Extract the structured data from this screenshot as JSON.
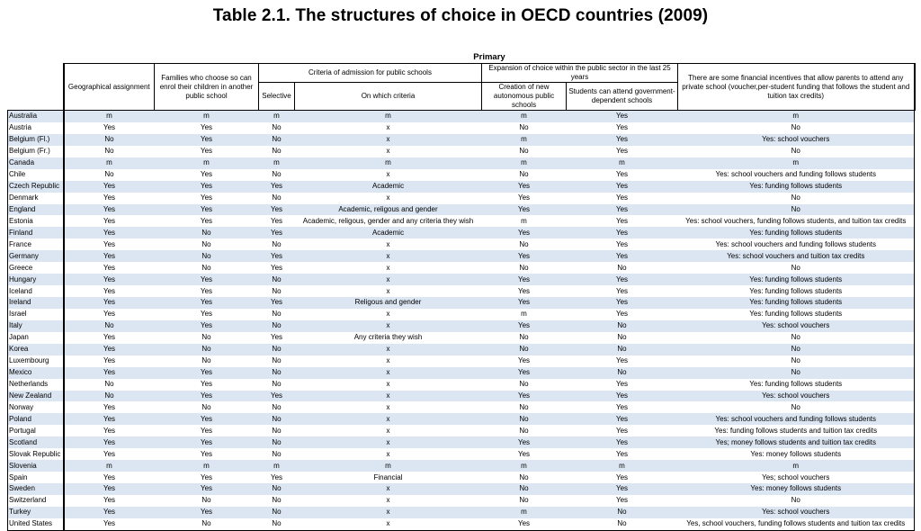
{
  "title": "Table 2.1. The structures of choice in OECD countries (2009)",
  "group_header": "Primary",
  "headers": {
    "geo": "Geographical assignment",
    "families": "Families who choose so can enrol their children in another public school",
    "criteria_group": "Criteria of admission for public schools",
    "selective": "Selective",
    "which_criteria": "On which criteria",
    "expansion_group": "Expansion of choice within the public sector in the last 25 years",
    "new_autonomous": "Creation of new autonomous public schools",
    "gov_dependent": "Students can attend government-dependent schools",
    "financial": "There are some financial incentives that allow parents to attend any private school (voucher,per-student funding that follows the student and tuition tax credits)"
  },
  "rows": [
    [
      "Australia",
      "m",
      "m",
      "m",
      "m",
      "m",
      "Yes",
      "m"
    ],
    [
      "Austria",
      "Yes",
      "Yes",
      "No",
      "x",
      "No",
      "Yes",
      "No"
    ],
    [
      "Belgium (Fl.)",
      "No",
      "Yes",
      "No",
      "x",
      "m",
      "Yes",
      "Yes: school vouchers"
    ],
    [
      "Belgium (Fr.)",
      "No",
      "Yes",
      "No",
      "x",
      "No",
      "Yes",
      "No"
    ],
    [
      "Canada",
      "m",
      "m",
      "m",
      "m",
      "m",
      "m",
      "m"
    ],
    [
      "Chile",
      "No",
      "Yes",
      "No",
      "x",
      "No",
      "Yes",
      "Yes: school vouchers and funding follows students"
    ],
    [
      "Czech Republic",
      "Yes",
      "Yes",
      "Yes",
      "Academic",
      "Yes",
      "Yes",
      "Yes: funding follows students"
    ],
    [
      "Denmark",
      "Yes",
      "Yes",
      "No",
      "x",
      "Yes",
      "Yes",
      "No"
    ],
    [
      "England",
      "Yes",
      "Yes",
      "Yes",
      "Academic, religous and gender",
      "Yes",
      "Yes",
      "No"
    ],
    [
      "Estonia",
      "Yes",
      "Yes",
      "Yes",
      "Academic, religous, gender and any criteria they wish",
      "m",
      "Yes",
      "Yes: school vouchers, funding follows students, and tuition tax credits"
    ],
    [
      "Finland",
      "Yes",
      "No",
      "Yes",
      "Academic",
      "Yes",
      "Yes",
      "Yes: funding follows students"
    ],
    [
      "France",
      "Yes",
      "No",
      "No",
      "x",
      "No",
      "Yes",
      "Yes: school vouchers and funding follows students"
    ],
    [
      "Germany",
      "Yes",
      "No",
      "Yes",
      "x",
      "Yes",
      "Yes",
      "Yes: school vouchers and tuition tax credits"
    ],
    [
      "Greece",
      "Yes",
      "No",
      "Yes",
      "x",
      "No",
      "No",
      "No"
    ],
    [
      "Hungary",
      "Yes",
      "Yes",
      "No",
      "x",
      "Yes",
      "Yes",
      "Yes: funding follows students"
    ],
    [
      "Iceland",
      "Yes",
      "Yes",
      "No",
      "x",
      "Yes",
      "Yes",
      "Yes: funding follows students"
    ],
    [
      "Ireland",
      "Yes",
      "Yes",
      "Yes",
      "Religous and gender",
      "Yes",
      "Yes",
      "Yes: funding follows students"
    ],
    [
      "Israel",
      "Yes",
      "Yes",
      "No",
      "x",
      "m",
      "Yes",
      "Yes: funding follows students"
    ],
    [
      "Italy",
      "No",
      "Yes",
      "No",
      "x",
      "Yes",
      "No",
      "Yes: school vouchers"
    ],
    [
      "Japan",
      "Yes",
      "No",
      "Yes",
      "Any criteria they wish",
      "No",
      "No",
      "No"
    ],
    [
      "Korea",
      "Yes",
      "No",
      "No",
      "x",
      "No",
      "No",
      "No"
    ],
    [
      "Luxembourg",
      "Yes",
      "No",
      "No",
      "x",
      "Yes",
      "Yes",
      "No"
    ],
    [
      "Mexico",
      "Yes",
      "Yes",
      "No",
      "x",
      "Yes",
      "No",
      "No"
    ],
    [
      "Netherlands",
      "No",
      "Yes",
      "No",
      "x",
      "No",
      "Yes",
      "Yes: funding follows students"
    ],
    [
      "New Zealand",
      "No",
      "Yes",
      "Yes",
      "x",
      "Yes",
      "Yes",
      "Yes: school vouchers"
    ],
    [
      "Norway",
      "Yes",
      "No",
      "No",
      "x",
      "No",
      "Yes",
      "No"
    ],
    [
      "Poland",
      "Yes",
      "Yes",
      "No",
      "x",
      "No",
      "Yes",
      "Yes: school vouchers and funding follows students"
    ],
    [
      "Portugal",
      "Yes",
      "Yes",
      "No",
      "x",
      "No",
      "Yes",
      "Yes: funding follows students and tuition tax credits"
    ],
    [
      "Scotland",
      "Yes",
      "Yes",
      "No",
      "x",
      "Yes",
      "Yes",
      "Yes; money follows students and tuition tax credits"
    ],
    [
      "Slovak Republic",
      "Yes",
      "Yes",
      "No",
      "x",
      "Yes",
      "Yes",
      "Yes: money follows students"
    ],
    [
      "Slovenia",
      "m",
      "m",
      "m",
      "m",
      "m",
      "m",
      "m"
    ],
    [
      "Spain",
      "Yes",
      "Yes",
      "Yes",
      "Financial",
      "No",
      "Yes",
      "Yes; school vouchers"
    ],
    [
      "Sweden",
      "Yes",
      "Yes",
      "No",
      "x",
      "No",
      "Yes",
      "Yes: money follows students"
    ],
    [
      "Switzerland",
      "Yes",
      "No",
      "No",
      "x",
      "No",
      "Yes",
      "No"
    ],
    [
      "Turkey",
      "Yes",
      "Yes",
      "No",
      "x",
      "m",
      "No",
      "Yes: school vouchers"
    ],
    [
      "United States",
      "Yes",
      "No",
      "No",
      "x",
      "Yes",
      "No",
      "Yes, school vouchers, funding follows students and tuition tax credits"
    ]
  ]
}
